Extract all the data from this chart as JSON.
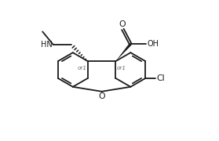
{
  "bg": "#ffffff",
  "lc": "#1a1a1a",
  "lw": 1.3,
  "fw": 2.79,
  "fh": 1.8,
  "dpi": 100,
  "xlim": [
    -0.2,
    10.2
  ],
  "ylim": [
    0.5,
    9.5
  ]
}
